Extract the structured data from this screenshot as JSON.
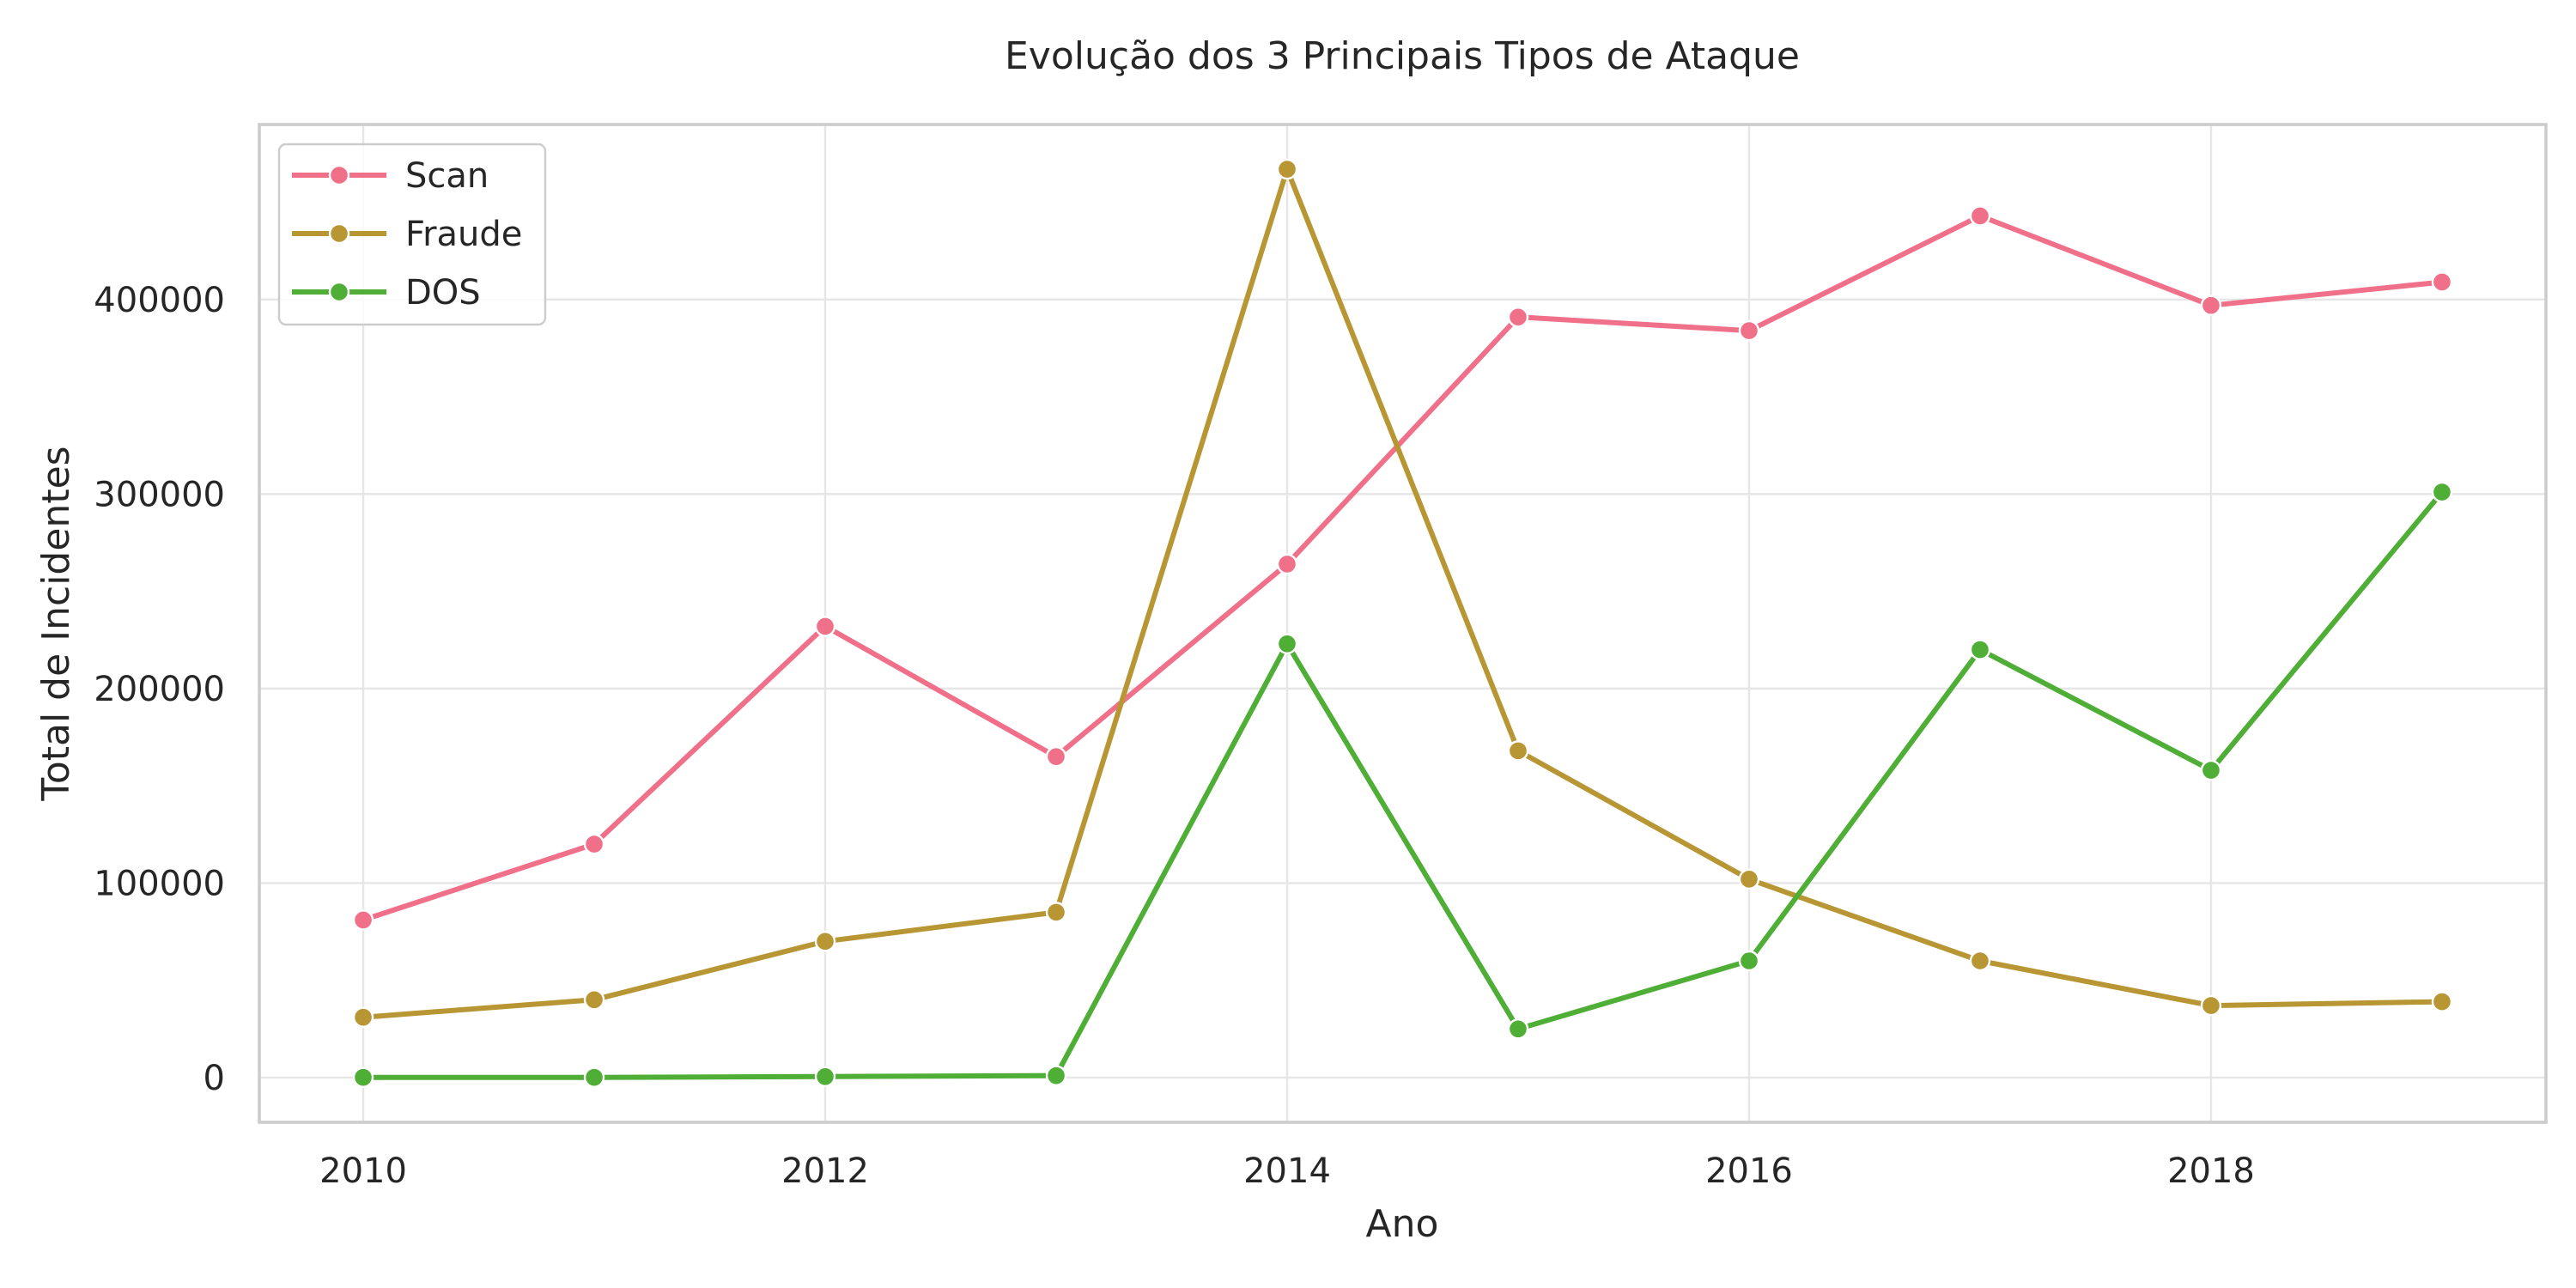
{
  "chart_data": {
    "type": "line",
    "title": "Evolução dos 3 Principais Tipos de Ataque",
    "xlabel": "Ano",
    "ylabel": "Total de Incidentes",
    "x": [
      2010,
      2011,
      2012,
      2013,
      2014,
      2015,
      2016,
      2017,
      2018,
      2019
    ],
    "xticks": [
      2010,
      2012,
      2014,
      2016,
      2018
    ],
    "yticks": [
      0,
      100000,
      200000,
      300000,
      400000
    ],
    "xlim": [
      2009.55,
      2019.45
    ],
    "ylim": [
      -23000,
      490000
    ],
    "grid": true,
    "legend_position": "top-left",
    "series": [
      {
        "name": "Scan",
        "color": "#f0708a",
        "values": [
          81000,
          120000,
          232000,
          165000,
          264000,
          391000,
          384000,
          443000,
          397000,
          409000
        ]
      },
      {
        "name": "Fraude",
        "color": "#b89634",
        "values": [
          31000,
          40000,
          70000,
          85000,
          467000,
          168000,
          102000,
          60000,
          37000,
          39000
        ]
      },
      {
        "name": "DOS",
        "color": "#4fae36",
        "values": [
          100,
          100,
          500,
          1000,
          223000,
          25000,
          60000,
          220000,
          158000,
          301000
        ]
      }
    ]
  }
}
